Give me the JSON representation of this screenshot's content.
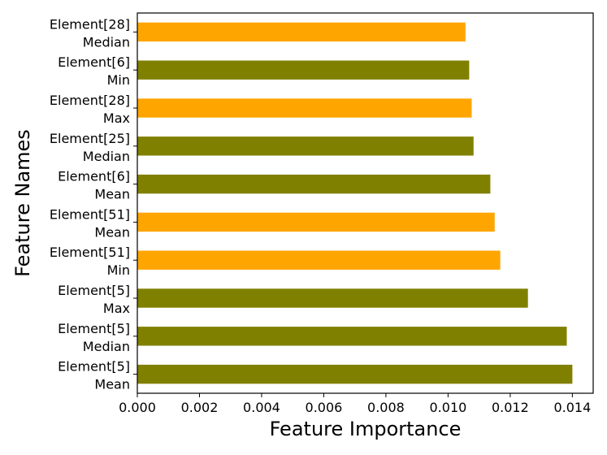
{
  "chart_data": {
    "type": "bar",
    "orientation": "horizontal",
    "title": "",
    "xlabel": "Feature Importance",
    "ylabel": "Feature Names",
    "xlim": [
      0.0,
      0.01467
    ],
    "xticks": [
      "0.000",
      "0.002",
      "0.004",
      "0.006",
      "0.008",
      "0.010",
      "0.012",
      "0.014"
    ],
    "grid": false,
    "legend": "none",
    "colors": {
      "olive": "#808000",
      "orange": "#FFA500"
    },
    "categories": [
      [
        "Element[5]",
        "Mean"
      ],
      [
        "Element[5]",
        "Median"
      ],
      [
        "Element[5]",
        "Max"
      ],
      [
        "Element[51]",
        "Min"
      ],
      [
        "Element[51]",
        "Mean"
      ],
      [
        "Element[6]",
        "Mean"
      ],
      [
        "Element[25]",
        "Median"
      ],
      [
        "Element[28]",
        "Max"
      ],
      [
        "Element[6]",
        "Min"
      ],
      [
        "Element[28]",
        "Median"
      ]
    ],
    "values": [
      0.014,
      0.01382,
      0.01257,
      0.01168,
      0.0115,
      0.01136,
      0.01082,
      0.01076,
      0.01068,
      0.01056
    ],
    "bar_colors": [
      "#808000",
      "#808000",
      "#808000",
      "#FFA500",
      "#FFA500",
      "#808000",
      "#808000",
      "#FFA500",
      "#808000",
      "#FFA500"
    ]
  }
}
